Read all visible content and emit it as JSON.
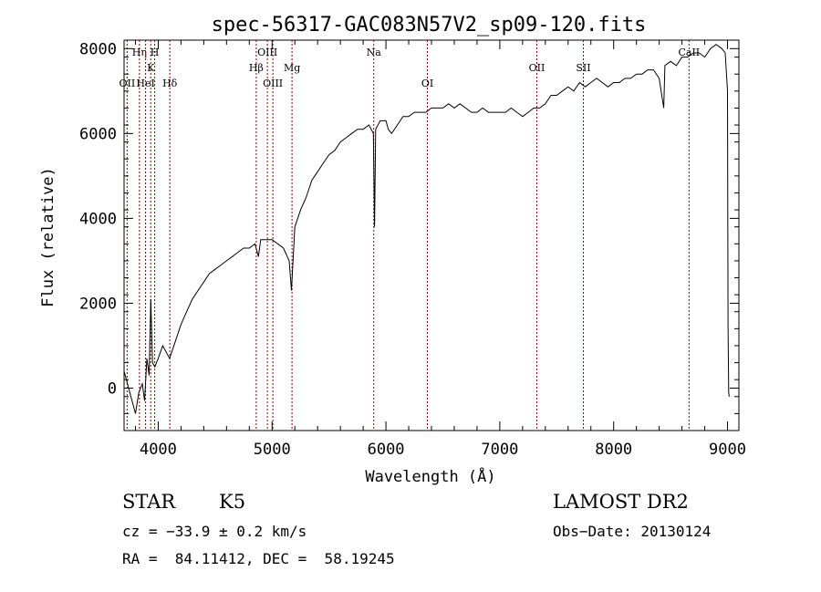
{
  "chart_data": {
    "type": "line",
    "title": "spec-56317-GAC083N57V2_sp09-120.fits",
    "xlabel": "Wavelength (Å)",
    "ylabel": "Flux (relative)",
    "xlim": [
      3700,
      9100
    ],
    "ylim": [
      -1000,
      8200
    ],
    "xticks": [
      4000,
      5000,
      6000,
      7000,
      8000,
      9000
    ],
    "yticks": [
      0,
      2000,
      4000,
      6000,
      8000
    ],
    "grid": false,
    "line_color": "#000000",
    "marker_color": "#8b0000",
    "spectrum": {
      "x": [
        3700,
        3740,
        3780,
        3800,
        3830,
        3860,
        3880,
        3900,
        3920,
        3935,
        3950,
        3970,
        4000,
        4040,
        4080,
        4100,
        4150,
        4200,
        4250,
        4300,
        4350,
        4400,
        4450,
        4500,
        4550,
        4600,
        4650,
        4700,
        4750,
        4800,
        4850,
        4880,
        4900,
        4950,
        5000,
        5050,
        5100,
        5150,
        5170,
        5200,
        5250,
        5300,
        5350,
        5400,
        5450,
        5500,
        5550,
        5600,
        5650,
        5700,
        5750,
        5800,
        5850,
        5890,
        5900,
        5910,
        5950,
        6000,
        6020,
        6050,
        6100,
        6150,
        6200,
        6250,
        6300,
        6350,
        6400,
        6450,
        6500,
        6550,
        6600,
        6650,
        6700,
        6750,
        6800,
        6850,
        6900,
        6950,
        7000,
        7050,
        7100,
        7150,
        7200,
        7250,
        7300,
        7350,
        7400,
        7450,
        7500,
        7550,
        7600,
        7650,
        7700,
        7750,
        7800,
        7850,
        7900,
        7950,
        8000,
        8050,
        8100,
        8150,
        8200,
        8250,
        8300,
        8350,
        8400,
        8440,
        8450,
        8500,
        8550,
        8600,
        8650,
        8700,
        8750,
        8800,
        8850,
        8900,
        8950,
        8980,
        9000,
        9005,
        9010,
        9015
      ],
      "y": [
        400,
        0,
        -400,
        -600,
        -100,
        100,
        -300,
        700,
        300,
        2100,
        600,
        500,
        700,
        1000,
        800,
        700,
        1100,
        1500,
        1800,
        2100,
        2300,
        2500,
        2700,
        2800,
        2900,
        3000,
        3100,
        3200,
        3300,
        3300,
        3400,
        3100,
        3500,
        3500,
        3500,
        3400,
        3300,
        3000,
        2300,
        3800,
        4200,
        4500,
        4900,
        5100,
        5300,
        5500,
        5600,
        5800,
        5900,
        6000,
        6100,
        6100,
        6200,
        6000,
        3800,
        6100,
        6300,
        6300,
        6100,
        6000,
        6200,
        6400,
        6400,
        6500,
        6500,
        6500,
        6600,
        6600,
        6600,
        6700,
        6600,
        6700,
        6600,
        6500,
        6500,
        6600,
        6500,
        6500,
        6500,
        6500,
        6600,
        6500,
        6400,
        6500,
        6600,
        6600,
        6700,
        6900,
        6900,
        7000,
        7100,
        7000,
        7200,
        7100,
        7200,
        7300,
        7200,
        7100,
        7200,
        7200,
        7300,
        7300,
        7400,
        7400,
        7500,
        7500,
        7300,
        6600,
        7600,
        7700,
        7600,
        7800,
        7800,
        7900,
        7900,
        7800,
        8000,
        8100,
        8000,
        7900,
        7000,
        1500,
        -100,
        -200
      ]
    },
    "lines": [
      {
        "label": "OII",
        "wl": 3727,
        "row": 3
      },
      {
        "label": "Hη",
        "wl": 3835,
        "row": 1
      },
      {
        "label": "HeI",
        "wl": 3889,
        "row": 3
      },
      {
        "label": "K",
        "wl": 3934,
        "row": 2
      },
      {
        "label": "H",
        "wl": 3969,
        "row": 1
      },
      {
        "label": "Hδ",
        "wl": 4102,
        "row": 3
      },
      {
        "label": "Hβ",
        "wl": 4861,
        "row": 2
      },
      {
        "label": "OIII",
        "wl": 4959,
        "row": 1
      },
      {
        "label": "OIII",
        "wl": 5007,
        "row": 3
      },
      {
        "label": "Mg",
        "wl": 5175,
        "row": 2
      },
      {
        "label": "Na",
        "wl": 5893,
        "row": 1
      },
      {
        "label": "OI",
        "wl": 6364,
        "row": 3
      },
      {
        "label": "OII",
        "wl": 7325,
        "row": 2
      },
      {
        "label": "SII",
        "wl": 7734,
        "row": 2
      },
      {
        "label": "CaII",
        "wl": 8662,
        "row": 1
      }
    ]
  },
  "info": {
    "class": "STAR",
    "subclass": "K5",
    "survey": "LAMOST DR2",
    "cz": "cz = −33.9 ± 0.2 km/s",
    "obs_date": "Obs−Date: 20130124",
    "coords": "RA =  84.11412, DEC =  58.19245"
  }
}
